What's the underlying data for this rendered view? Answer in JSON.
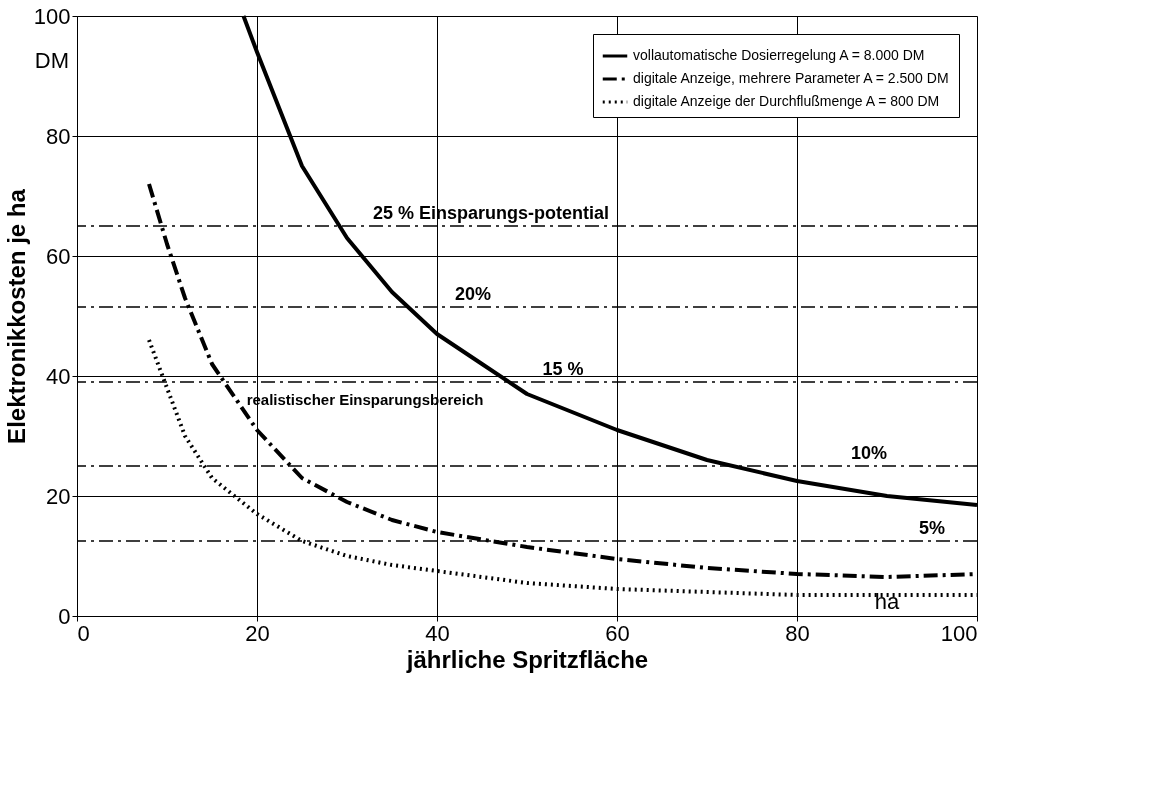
{
  "chart_data": {
    "type": "line",
    "xlabel": "jährliche Spritzfläche",
    "ylabel": "Elektronikkosten je ha",
    "xlim": [
      0,
      100
    ],
    "xticks": [
      0,
      20,
      40,
      60,
      80,
      100
    ],
    "ylim": [
      0,
      100
    ],
    "yticks": [
      0,
      20,
      40,
      60,
      80,
      100
    ],
    "grid": true,
    "legend": "top right",
    "marker": "none",
    "series": [
      {
        "name": "vollautomatische Dosierregelung A = 8.000 DM",
        "color": "#000000",
        "line_style": "solid",
        "x": [
          18.5,
          20,
          25,
          30,
          35,
          40,
          45,
          50,
          60,
          70,
          80,
          90,
          100
        ],
        "values": [
          100,
          94,
          75,
          63,
          54,
          47,
          42,
          37,
          31,
          26,
          22.5,
          20,
          18.5
        ]
      },
      {
        "name": "digitale Anzeige, mehrere Parameter A = 2.500 DM",
        "color": "#000000",
        "line_style": "dashed",
        "x": [
          8,
          10,
          12,
          15,
          20,
          25,
          30,
          35,
          40,
          50,
          60,
          70,
          80,
          90,
          100
        ],
        "values": [
          72,
          62,
          53,
          42,
          31,
          23,
          19,
          16,
          14,
          11.5,
          9.5,
          8,
          7,
          6.5,
          7
        ]
      },
      {
        "name": "digitale Anzeige der Durchflußmenge A = 800 DM",
        "color": "#000000",
        "line_style": "dotted",
        "x": [
          8,
          10,
          12,
          15,
          20,
          25,
          30,
          35,
          40,
          50,
          60,
          70,
          80,
          90,
          100
        ],
        "values": [
          46,
          38,
          30,
          23,
          17,
          12.5,
          10,
          8.5,
          7.5,
          5.5,
          4.5,
          4,
          3.5,
          3.5,
          3.5
        ]
      }
    ],
    "ref_lines": [
      {
        "axis": "y",
        "value": 65,
        "line_style": "dashed"
      },
      {
        "axis": "y",
        "value": 51.5,
        "line_style": "dashed"
      },
      {
        "axis": "y",
        "value": 39,
        "line_style": "dashed"
      },
      {
        "axis": "y",
        "value": 25,
        "line_style": "dashed"
      },
      {
        "axis": "y",
        "value": 12.5,
        "line_style": "dashed"
      }
    ],
    "annotations": [
      "DM",
      "ha",
      "realistischer Einsparungsbereich",
      {
        "text": "25 % Einsparungs-potential",
        "x": 46,
        "y": 65
      },
      {
        "text": "20%",
        "x": 44,
        "y": 51.5
      },
      {
        "text": "15 %",
        "x": 54,
        "y": 39
      },
      {
        "text": "10%",
        "x": 88,
        "y": 25
      },
      {
        "text": "5%",
        "x": 95,
        "y": 12.5
      }
    ]
  }
}
